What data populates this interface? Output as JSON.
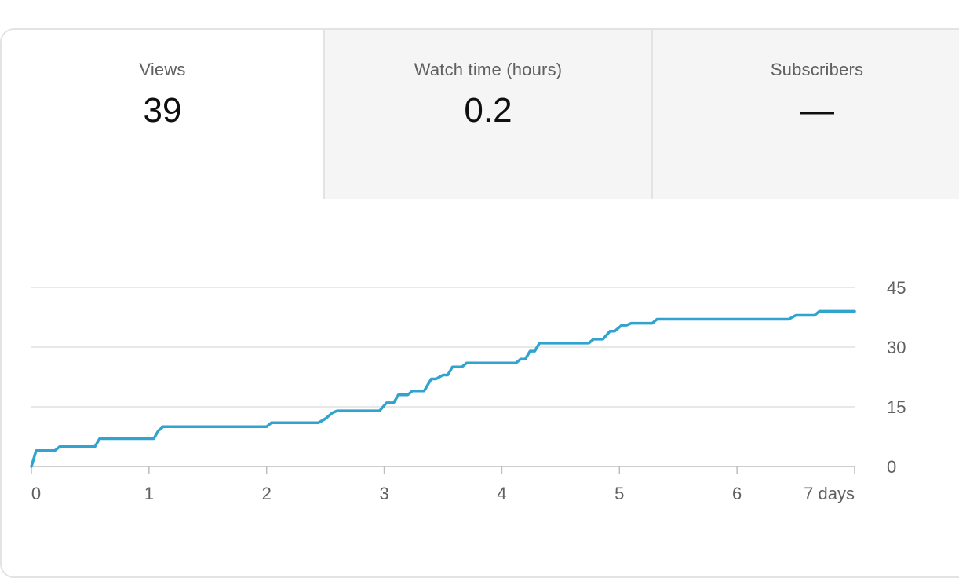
{
  "tabs": [
    {
      "label": "Views",
      "value": "39"
    },
    {
      "label": "Watch time (hours)",
      "value": "0.2"
    },
    {
      "label": "Subscribers",
      "value": "—"
    }
  ],
  "colors": {
    "line": "#30a3cf",
    "grid": "#e0e0e0",
    "axis": "#bdbdbd",
    "selected_tab_bg": "#ffffff",
    "tab_bg": "#f5f5f5"
  },
  "chart_data": {
    "type": "line",
    "title": "",
    "xlabel": "",
    "ylabel": "",
    "xlim": [
      0,
      7
    ],
    "ylim": [
      0,
      45
    ],
    "x_ticks": [
      0,
      1,
      2,
      3,
      4,
      5,
      6,
      7
    ],
    "x_tick_labels": [
      "0",
      "1",
      "2",
      "3",
      "4",
      "5",
      "6",
      "7 days"
    ],
    "y_ticks": [
      0,
      15,
      30,
      45
    ],
    "y_tick_labels": [
      "0",
      "15",
      "30",
      "45"
    ],
    "grid": true,
    "series": [
      {
        "values": [
          [
            0,
            0
          ],
          [
            0.04,
            4
          ],
          [
            0.2,
            4
          ],
          [
            0.24,
            5
          ],
          [
            0.54,
            5
          ],
          [
            0.58,
            7
          ],
          [
            1.04,
            7
          ],
          [
            1.08,
            9
          ],
          [
            1.12,
            10
          ],
          [
            2.0,
            10
          ],
          [
            2.04,
            11
          ],
          [
            2.44,
            11
          ],
          [
            2.5,
            12
          ],
          [
            2.56,
            13.5
          ],
          [
            2.6,
            14
          ],
          [
            2.96,
            14
          ],
          [
            3.02,
            16
          ],
          [
            3.08,
            16
          ],
          [
            3.12,
            18
          ],
          [
            3.2,
            18
          ],
          [
            3.24,
            19
          ],
          [
            3.34,
            19
          ],
          [
            3.4,
            22
          ],
          [
            3.44,
            22
          ],
          [
            3.5,
            23
          ],
          [
            3.54,
            23
          ],
          [
            3.58,
            25
          ],
          [
            3.66,
            25
          ],
          [
            3.7,
            26
          ],
          [
            4.12,
            26
          ],
          [
            4.16,
            27
          ],
          [
            4.2,
            27
          ],
          [
            4.24,
            29
          ],
          [
            4.28,
            29
          ],
          [
            4.32,
            31
          ],
          [
            4.74,
            31
          ],
          [
            4.78,
            32
          ],
          [
            4.86,
            32
          ],
          [
            4.92,
            34
          ],
          [
            4.96,
            34
          ],
          [
            5.02,
            35.5
          ],
          [
            5.06,
            35.5
          ],
          [
            5.1,
            36
          ],
          [
            5.28,
            36
          ],
          [
            5.32,
            37
          ],
          [
            6.44,
            37
          ],
          [
            6.5,
            38
          ],
          [
            6.66,
            38
          ],
          [
            6.7,
            39
          ],
          [
            7.0,
            39
          ]
        ]
      }
    ]
  }
}
